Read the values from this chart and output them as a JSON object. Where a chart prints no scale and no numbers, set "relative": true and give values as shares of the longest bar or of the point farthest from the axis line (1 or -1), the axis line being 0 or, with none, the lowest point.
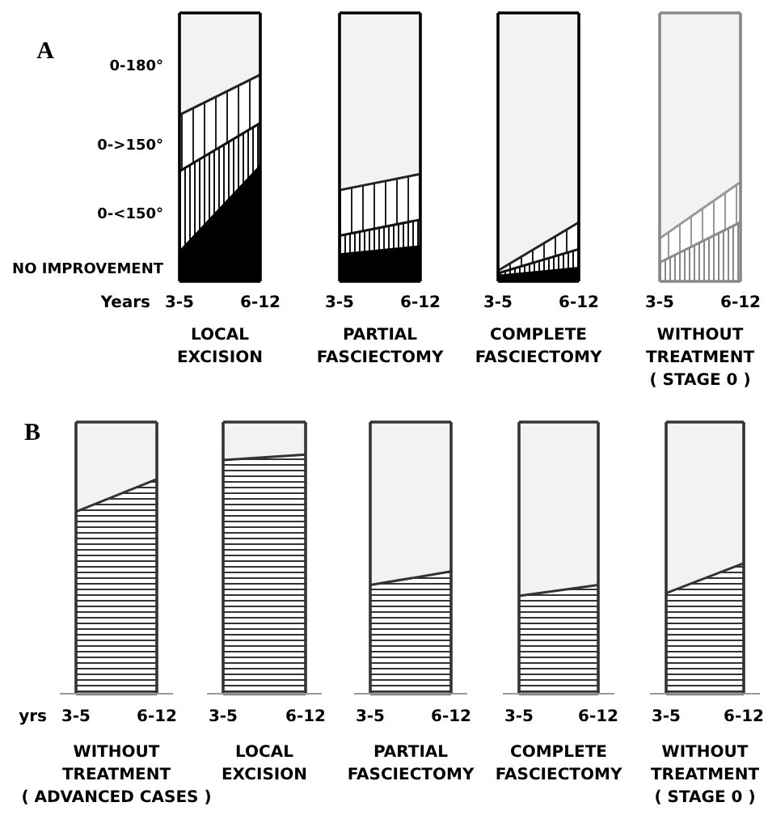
{
  "chart_data": [
    {
      "type": "area",
      "title": "A",
      "stacked": true,
      "relative": true,
      "categories": [
        "3-5",
        "6-12"
      ],
      "xlabel": "LOCAL\nEXCISION",
      "annotations": [
        "Years"
      ],
      "series": [
        {
          "name": "NO IMPROVEMENT",
          "color": "#000000",
          "values": [
            0.11,
            0.43
          ]
        },
        {
          "name": "0-<150°",
          "color": "#111111",
          "values": [
            0.3,
            0.16
          ]
        },
        {
          "name": "0->150°",
          "color": "#222222",
          "values": [
            0.21,
            0.18
          ]
        },
        {
          "name": "0-180°",
          "color": "#f2f2f2",
          "values": [
            0.38,
            0.23
          ]
        }
      ]
    },
    {
      "type": "area",
      "stacked": true,
      "relative": true,
      "categories": [
        "3-5",
        "6-12"
      ],
      "xlabel": "PARTIAL\nFASCIECTOMY",
      "series": [
        {
          "color": "#000000",
          "values": [
            0.1,
            0.13
          ]
        },
        {
          "color": "#111111",
          "values": [
            0.07,
            0.1
          ]
        },
        {
          "color": "#222222",
          "values": [
            0.17,
            0.17
          ]
        },
        {
          "color": "#f2f2f2",
          "values": [
            0.66,
            0.6
          ]
        }
      ]
    },
    {
      "type": "area",
      "stacked": true,
      "relative": true,
      "categories": [
        "3-5",
        "6-12"
      ],
      "xlabel": "COMPLETE\nFASCIECTOMY",
      "series": [
        {
          "color": "#000000",
          "values": [
            0.02,
            0.05
          ]
        },
        {
          "color": "#111111",
          "values": [
            0.01,
            0.07
          ]
        },
        {
          "color": "#222222",
          "values": [
            0.01,
            0.1
          ]
        },
        {
          "color": "#f2f2f2",
          "values": [
            0.96,
            0.78
          ]
        }
      ]
    },
    {
      "type": "area",
      "stacked": true,
      "relative": true,
      "categories": [
        "3-5",
        "6-12"
      ],
      "xlabel": "WITHOUT\nTREATMENT\n( STAGE 0 )",
      "series": [
        {
          "color": "#888888",
          "values": [
            0.07,
            0.22
          ]
        },
        {
          "color": "#999999",
          "values": [
            0.09,
            0.15
          ]
        },
        {
          "color": "#f2f2f2",
          "values": [
            0.84,
            0.63
          ]
        }
      ]
    },
    {
      "type": "area",
      "title": "B",
      "stacked": true,
      "relative": true,
      "categories": [
        "3-5",
        "6-12"
      ],
      "xlabel": "WITHOUT\nTREATMENT\n( ADVANCED CASES )",
      "annotations": [
        "yrs"
      ],
      "series": [
        {
          "color": "#333333",
          "values": [
            0.67,
            0.79
          ]
        },
        {
          "color": "#f2f2f2",
          "values": [
            0.33,
            0.21
          ]
        }
      ]
    },
    {
      "type": "area",
      "stacked": true,
      "relative": true,
      "categories": [
        "3-5",
        "6-12"
      ],
      "xlabel": "LOCAL\nEXCISION",
      "series": [
        {
          "color": "#333333",
          "values": [
            0.86,
            0.88
          ]
        },
        {
          "color": "#f2f2f2",
          "values": [
            0.14,
            0.12
          ]
        }
      ]
    },
    {
      "type": "area",
      "stacked": true,
      "relative": true,
      "categories": [
        "3-5",
        "6-12"
      ],
      "xlabel": "PARTIAL\nFASCIECTOMY",
      "series": [
        {
          "color": "#333333",
          "values": [
            0.4,
            0.45
          ]
        },
        {
          "color": "#f2f2f2",
          "values": [
            0.6,
            0.55
          ]
        }
      ]
    },
    {
      "type": "area",
      "stacked": true,
      "relative": true,
      "categories": [
        "3-5",
        "6-12"
      ],
      "xlabel": "COMPLETE\nFASCIECTOMY",
      "series": [
        {
          "color": "#333333",
          "values": [
            0.36,
            0.4
          ]
        },
        {
          "color": "#f2f2f2",
          "values": [
            0.64,
            0.6
          ]
        }
      ]
    },
    {
      "type": "area",
      "stacked": true,
      "relative": true,
      "categories": [
        "3-5",
        "6-12"
      ],
      "xlabel": "WITHOUT\nTREATMENT\n( STAGE 0 )",
      "series": [
        {
          "color": "#333333",
          "values": [
            0.37,
            0.48
          ]
        },
        {
          "color": "#f2f2f2",
          "values": [
            0.63,
            0.52
          ]
        }
      ]
    }
  ]
}
